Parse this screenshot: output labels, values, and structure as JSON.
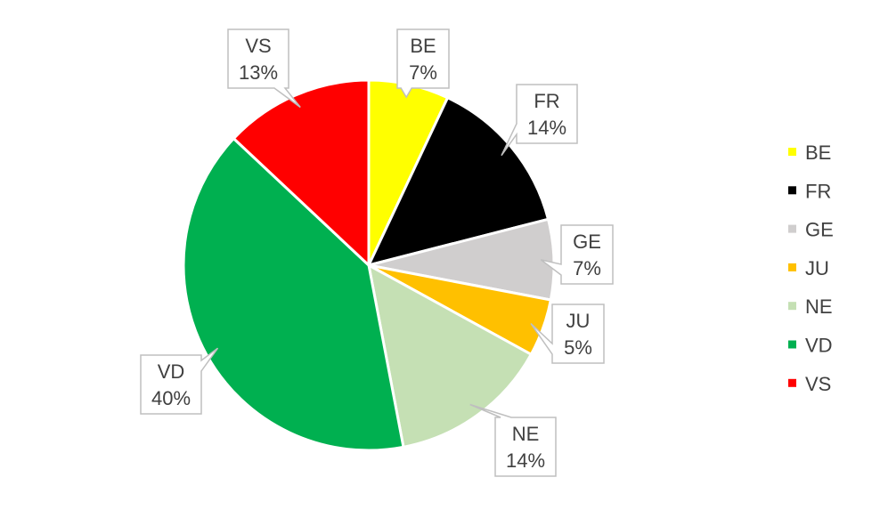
{
  "chart_data": {
    "type": "pie",
    "title": "",
    "legend": "right",
    "categories": [
      "BE",
      "FR",
      "GE",
      "JU",
      "NE",
      "VD",
      "VS"
    ],
    "values": [
      7,
      14,
      7,
      5,
      14,
      40,
      13
    ],
    "labels": [
      "7%",
      "14%",
      "7%",
      "5%",
      "14%",
      "40%",
      "13%"
    ],
    "colors": [
      "#FFFF00",
      "#000000",
      "#D0CECE",
      "#FFC000",
      "#C5E0B4",
      "#00B050",
      "#FF0000"
    ]
  }
}
